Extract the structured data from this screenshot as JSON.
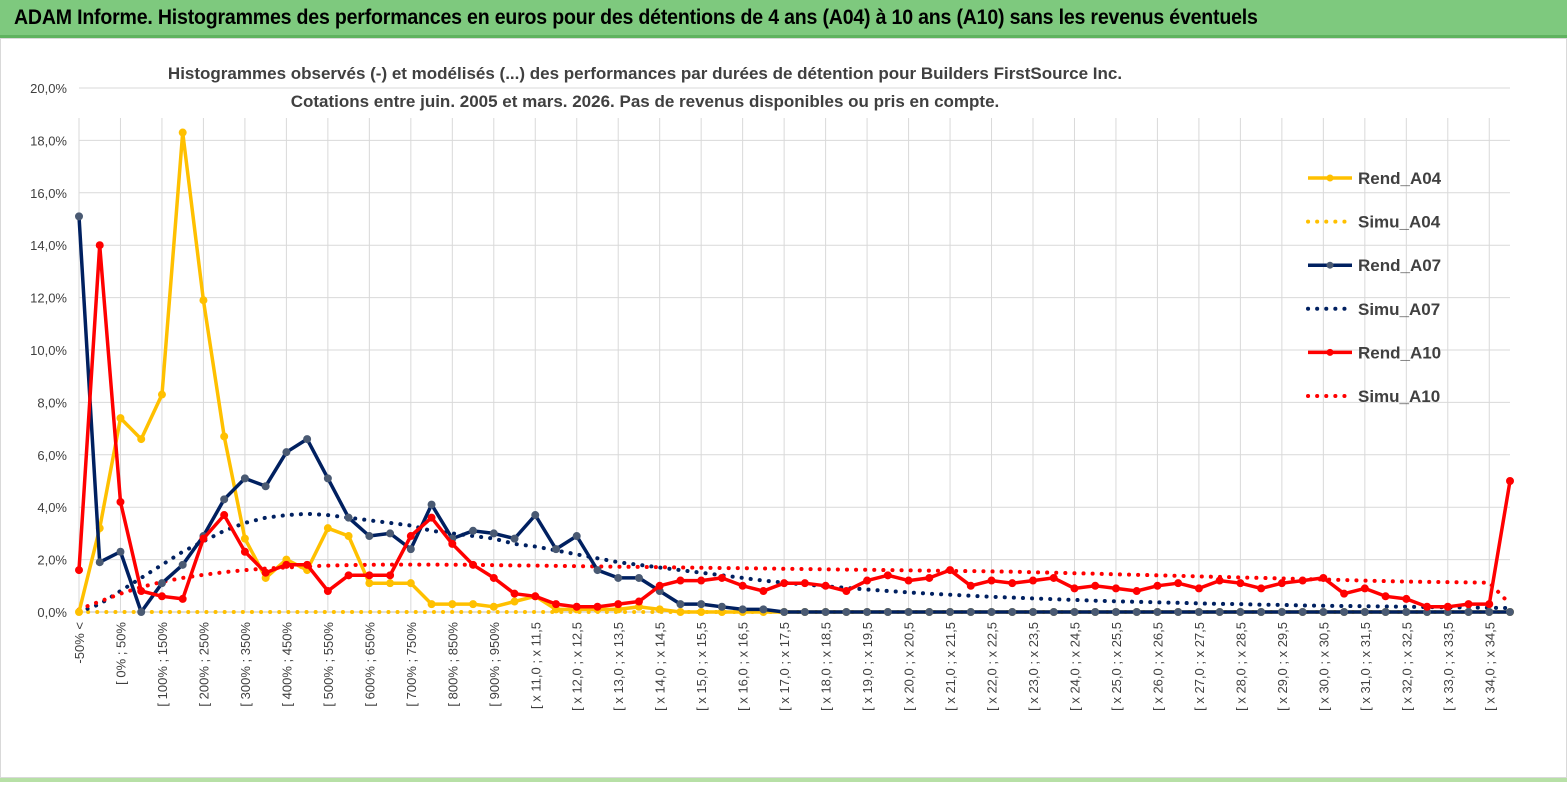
{
  "header": {
    "title": "ADAM Informe. Histogrammes des performances en euros pour des détentions de 4 ans (A04) à 10 ans (A10) sans les revenus éventuels"
  },
  "colors": {
    "a04": "#ffc000",
    "a07": "#002060",
    "a10": "#ff0000",
    "header_bg": "#7ec97e",
    "grid": "#d9d9d9"
  },
  "chart_data": {
    "type": "line",
    "title": "Histogrammes observés (-)  et modélisés (...) des performances par durées de détention pour Builders FirstSource Inc.",
    "subtitle": "Cotations entre juin. 2005 et mars. 2026.  Pas de  revenus disponibles ou pris en compte.",
    "xlabel": "",
    "ylabel": "",
    "ylim": [
      0,
      20
    ],
    "yticks": [
      "0,0%",
      "2,0%",
      "4,0%",
      "6,0%",
      "8,0%",
      "10,0%",
      "12,0%",
      "14,0%",
      "16,0%",
      "18,0%",
      "20,0%"
    ],
    "legend_position": "right",
    "x_count": 70,
    "tick_labels": [
      "-50% <",
      "[ 0% ; 50%",
      "[ 100% ; 150%",
      "[ 200% ; 250%",
      "[ 300% ; 350%",
      "[ 400% ; 450%",
      "[ 500% ; 550%",
      "[ 600% ; 650%",
      "[ 700% ; 750%",
      "[ 800% ; 850%",
      "[ 900% ; 950%",
      "[ x 11,0 ; x 11,5",
      "[ x 12,0 ; x 12,5",
      "[ x 13,0 ; x 13,5",
      "[ x 14,0 ; x 14,5",
      "[ x 15,0 ; x 15,5",
      "[ x 16,0 ; x 16,5",
      "[ x 17,0 ; x 17,5",
      "[ x 18,0 ; x 18,5",
      "[ x 19,0 ; x 19,5",
      "[ x 20,0 ; x 20,5",
      "[ x 21,0 ; x 21,5",
      "[ x 22,0 ; x 22,5",
      "[ x 23,0 ; x 23,5",
      "[ x 24,0 ; x 24,5",
      "[ x 25,0 ; x 25,5",
      "[ x 26,0 ; x 26,5",
      "[ x 27,0 ; x 27,5",
      "[ x 28,0 ; x 28,5",
      "[ x 29,0 ; x 29,5",
      "[ x 30,0 ; x 30,5",
      "[ x 31,0 ; x 31,5",
      "[ x 32,0 ; x 32,5",
      "[ x 33,0 ; x 33,5",
      "[ x 34,0 ; x 34,5"
    ],
    "series": [
      {
        "name": "Rend_A04",
        "style": "solid",
        "markers": true,
        "values": [
          0.0,
          3.2,
          7.4,
          6.6,
          8.3,
          18.3,
          11.9,
          6.7,
          2.8,
          1.3,
          2.0,
          1.6,
          3.2,
          2.9,
          1.1,
          1.1,
          1.1,
          0.3,
          0.3,
          0.3,
          0.2,
          0.4,
          0.6,
          0.1,
          0.1,
          0.1,
          0.1,
          0.2,
          0.1,
          0.0,
          0.0,
          0.0,
          0.0,
          0.0,
          0.0,
          0.0,
          0.0,
          0.0,
          0.0,
          0.0,
          0.0,
          0.0,
          0.0,
          0.0,
          0.0,
          0.0,
          0.0,
          0.0,
          0.0,
          0.0,
          0.0,
          0.0,
          0.0,
          0.0,
          0.0,
          0.0,
          0.0,
          0.0,
          0.0,
          0.0,
          0.0,
          0.0,
          0.0,
          0.0,
          0.0,
          0.0,
          0.0,
          0.0,
          0.0,
          0.0
        ]
      },
      {
        "name": "Simu_A04",
        "style": "dotted",
        "markers": false,
        "values": [
          0.0,
          0.0,
          0.0,
          0.0,
          0.0,
          0.0,
          0.0,
          0.0,
          0.0,
          0.0,
          0.0,
          0.0,
          0.0,
          0.0,
          0.0,
          0.0,
          0.0,
          0.0,
          0.0,
          0.0,
          0.0,
          0.0,
          0.0,
          0.0,
          0.0,
          0.0,
          0.0,
          0.0,
          0.0,
          0.0,
          0.0,
          0.0,
          0.0,
          0.0,
          0.0,
          0.0,
          0.0,
          0.0,
          0.0,
          0.0,
          0.0,
          0.0,
          0.0,
          0.0,
          0.0,
          0.0,
          0.0,
          0.0,
          0.0,
          0.0,
          0.0,
          0.0,
          0.0,
          0.0,
          0.0,
          0.0,
          0.0,
          0.0,
          0.0,
          0.0,
          0.0,
          0.0,
          0.0,
          0.0,
          0.0,
          0.0,
          0.0,
          0.0,
          0.0,
          0.0
        ]
      },
      {
        "name": "Rend_A07",
        "style": "solid",
        "markers": true,
        "values": [
          15.1,
          1.9,
          2.3,
          0.0,
          1.1,
          1.8,
          2.9,
          4.3,
          5.1,
          4.8,
          6.1,
          6.6,
          5.1,
          3.6,
          2.9,
          3.0,
          2.4,
          4.1,
          2.8,
          3.1,
          3.0,
          2.8,
          3.7,
          2.4,
          2.9,
          1.6,
          1.3,
          1.3,
          0.8,
          0.3,
          0.3,
          0.2,
          0.1,
          0.1,
          0.0,
          0.0,
          0.0,
          0.0,
          0.0,
          0.0,
          0.0,
          0.0,
          0.0,
          0.0,
          0.0,
          0.0,
          0.0,
          0.0,
          0.0,
          0.0,
          0.0,
          0.0,
          0.0,
          0.0,
          0.0,
          0.0,
          0.0,
          0.0,
          0.0,
          0.0,
          0.0,
          0.0,
          0.0,
          0.0,
          0.0,
          0.0,
          0.0,
          0.0,
          0.0,
          0.0
        ]
      },
      {
        "name": "Simu_A07",
        "style": "dotted",
        "markers": false,
        "values": [
          0.0,
          0.3,
          0.8,
          1.3,
          1.8,
          2.3,
          2.7,
          3.1,
          3.4,
          3.6,
          3.7,
          3.75,
          3.7,
          3.6,
          3.5,
          3.4,
          3.3,
          3.1,
          3.0,
          2.9,
          2.8,
          2.6,
          2.5,
          2.35,
          2.2,
          2.05,
          1.9,
          1.8,
          1.7,
          1.6,
          1.5,
          1.4,
          1.3,
          1.2,
          1.12,
          1.05,
          0.98,
          0.92,
          0.86,
          0.8,
          0.75,
          0.7,
          0.66,
          0.62,
          0.58,
          0.55,
          0.52,
          0.49,
          0.46,
          0.43,
          0.41,
          0.39,
          0.37,
          0.35,
          0.33,
          0.31,
          0.3,
          0.28,
          0.27,
          0.25,
          0.24,
          0.23,
          0.22,
          0.21,
          0.2,
          0.19,
          0.18,
          0.17,
          0.16,
          0.15
        ]
      },
      {
        "name": "Rend_A10",
        "style": "solid",
        "markers": true,
        "values": [
          1.6,
          14.0,
          4.2,
          0.8,
          0.6,
          0.5,
          2.8,
          3.7,
          2.3,
          1.5,
          1.8,
          1.8,
          0.8,
          1.4,
          1.4,
          1.4,
          2.9,
          3.6,
          2.6,
          1.8,
          1.3,
          0.7,
          0.6,
          0.3,
          0.2,
          0.2,
          0.3,
          0.4,
          1.0,
          1.2,
          1.2,
          1.3,
          1.0,
          0.8,
          1.1,
          1.1,
          1.0,
          0.8,
          1.2,
          1.4,
          1.2,
          1.3,
          1.6,
          1.0,
          1.2,
          1.1,
          1.2,
          1.3,
          0.9,
          1.0,
          0.9,
          0.8,
          1.0,
          1.1,
          0.9,
          1.2,
          1.1,
          0.9,
          1.1,
          1.2,
          1.3,
          0.7,
          0.9,
          0.6,
          0.5,
          0.2,
          0.2,
          0.3,
          0.3,
          5.0
        ]
      },
      {
        "name": "Simu_A10",
        "style": "dotted",
        "markers": false,
        "values": [
          0.1,
          0.4,
          0.7,
          0.95,
          1.15,
          1.3,
          1.42,
          1.52,
          1.6,
          1.66,
          1.7,
          1.74,
          1.77,
          1.79,
          1.8,
          1.81,
          1.81,
          1.81,
          1.8,
          1.8,
          1.79,
          1.78,
          1.77,
          1.76,
          1.75,
          1.74,
          1.73,
          1.72,
          1.71,
          1.7,
          1.69,
          1.68,
          1.67,
          1.66,
          1.65,
          1.64,
          1.63,
          1.62,
          1.61,
          1.6,
          1.59,
          1.58,
          1.57,
          1.56,
          1.55,
          1.54,
          1.52,
          1.5,
          1.48,
          1.46,
          1.44,
          1.42,
          1.4,
          1.38,
          1.36,
          1.34,
          1.32,
          1.3,
          1.28,
          1.26,
          1.24,
          1.22,
          1.2,
          1.18,
          1.16,
          1.15,
          1.14,
          1.13,
          1.12,
          0.3
        ]
      }
    ]
  }
}
